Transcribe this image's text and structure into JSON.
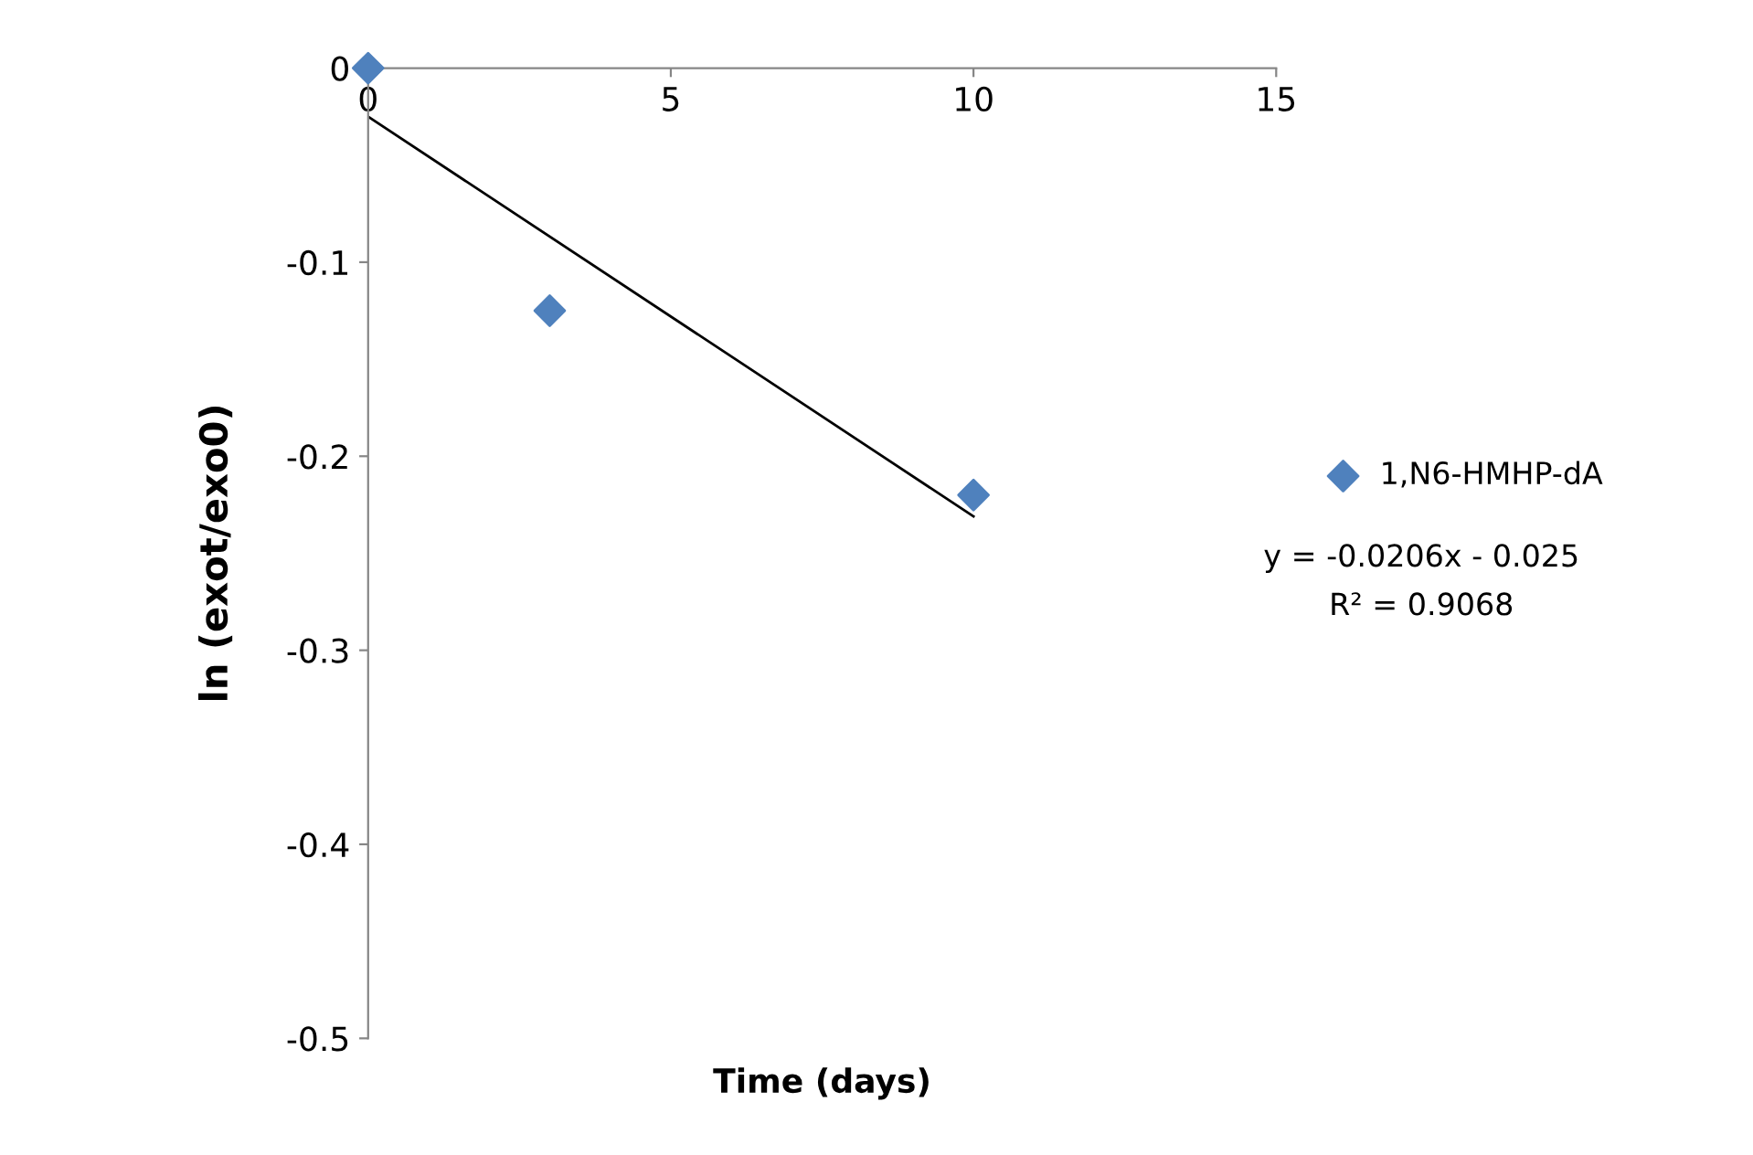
{
  "chart_data": {
    "type": "scatter",
    "xlabel": "Time (days)",
    "ylabel": "ln (exot/exo0)",
    "xlim": [
      0,
      15
    ],
    "xticks": [
      0,
      5,
      10,
      15
    ],
    "ylim": [
      -0.5,
      0
    ],
    "yticks": [
      -0.5,
      -0.4,
      -0.3,
      -0.2,
      -0.1,
      0
    ],
    "grid": false,
    "legend": "right",
    "marker": "diamond",
    "series": [
      {
        "name": "1,N6-HMHP-dA",
        "color": "#4f81bd",
        "x": [
          0,
          3,
          10
        ],
        "values": [
          0,
          -0.125,
          -0.22
        ]
      },
      {
        "type": "line",
        "color": "#000000",
        "x": [
          0,
          10
        ],
        "values": [
          -0.025,
          -0.231
        ],
        "marker": "none",
        "line_style": "solid"
      }
    ],
    "annotations": [
      "y = -0.0206x - 0.025",
      "R² = 0.9068"
    ]
  }
}
